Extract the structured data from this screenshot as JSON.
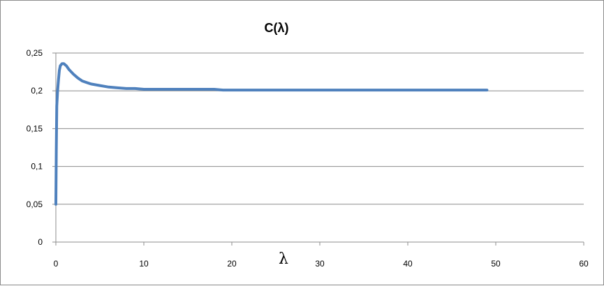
{
  "chart_data": {
    "type": "line",
    "title": "C(λ)",
    "xlabel": "λ",
    "ylabel": "",
    "xlim": [
      0,
      60
    ],
    "ylim": [
      0,
      0.25
    ],
    "x_ticks": [
      "0",
      "10",
      "20",
      "30",
      "40",
      "50",
      "60"
    ],
    "y_ticks": [
      "0",
      "0,05",
      "0,1",
      "0,15",
      "0,2",
      "0,25"
    ],
    "grid": "horizontal",
    "legend": "none",
    "series": [
      {
        "color": "#4f81bd",
        "x": [
          0,
          0.05,
          0.1,
          0.2,
          0.3,
          0.4,
          0.5,
          0.7,
          0.9,
          1.2,
          1.5,
          2,
          2.5,
          3,
          4,
          5,
          6,
          7,
          8,
          9,
          10,
          12,
          14,
          16,
          18,
          19,
          20,
          25,
          30,
          35,
          40,
          45,
          49
        ],
        "y": [
          0.05,
          0.12,
          0.18,
          0.2,
          0.215,
          0.227,
          0.233,
          0.236,
          0.236,
          0.233,
          0.228,
          0.222,
          0.217,
          0.213,
          0.209,
          0.207,
          0.205,
          0.204,
          0.203,
          0.203,
          0.202,
          0.202,
          0.202,
          0.202,
          0.202,
          0.201,
          0.201,
          0.201,
          0.201,
          0.201,
          0.201,
          0.201,
          0.201
        ]
      }
    ]
  }
}
